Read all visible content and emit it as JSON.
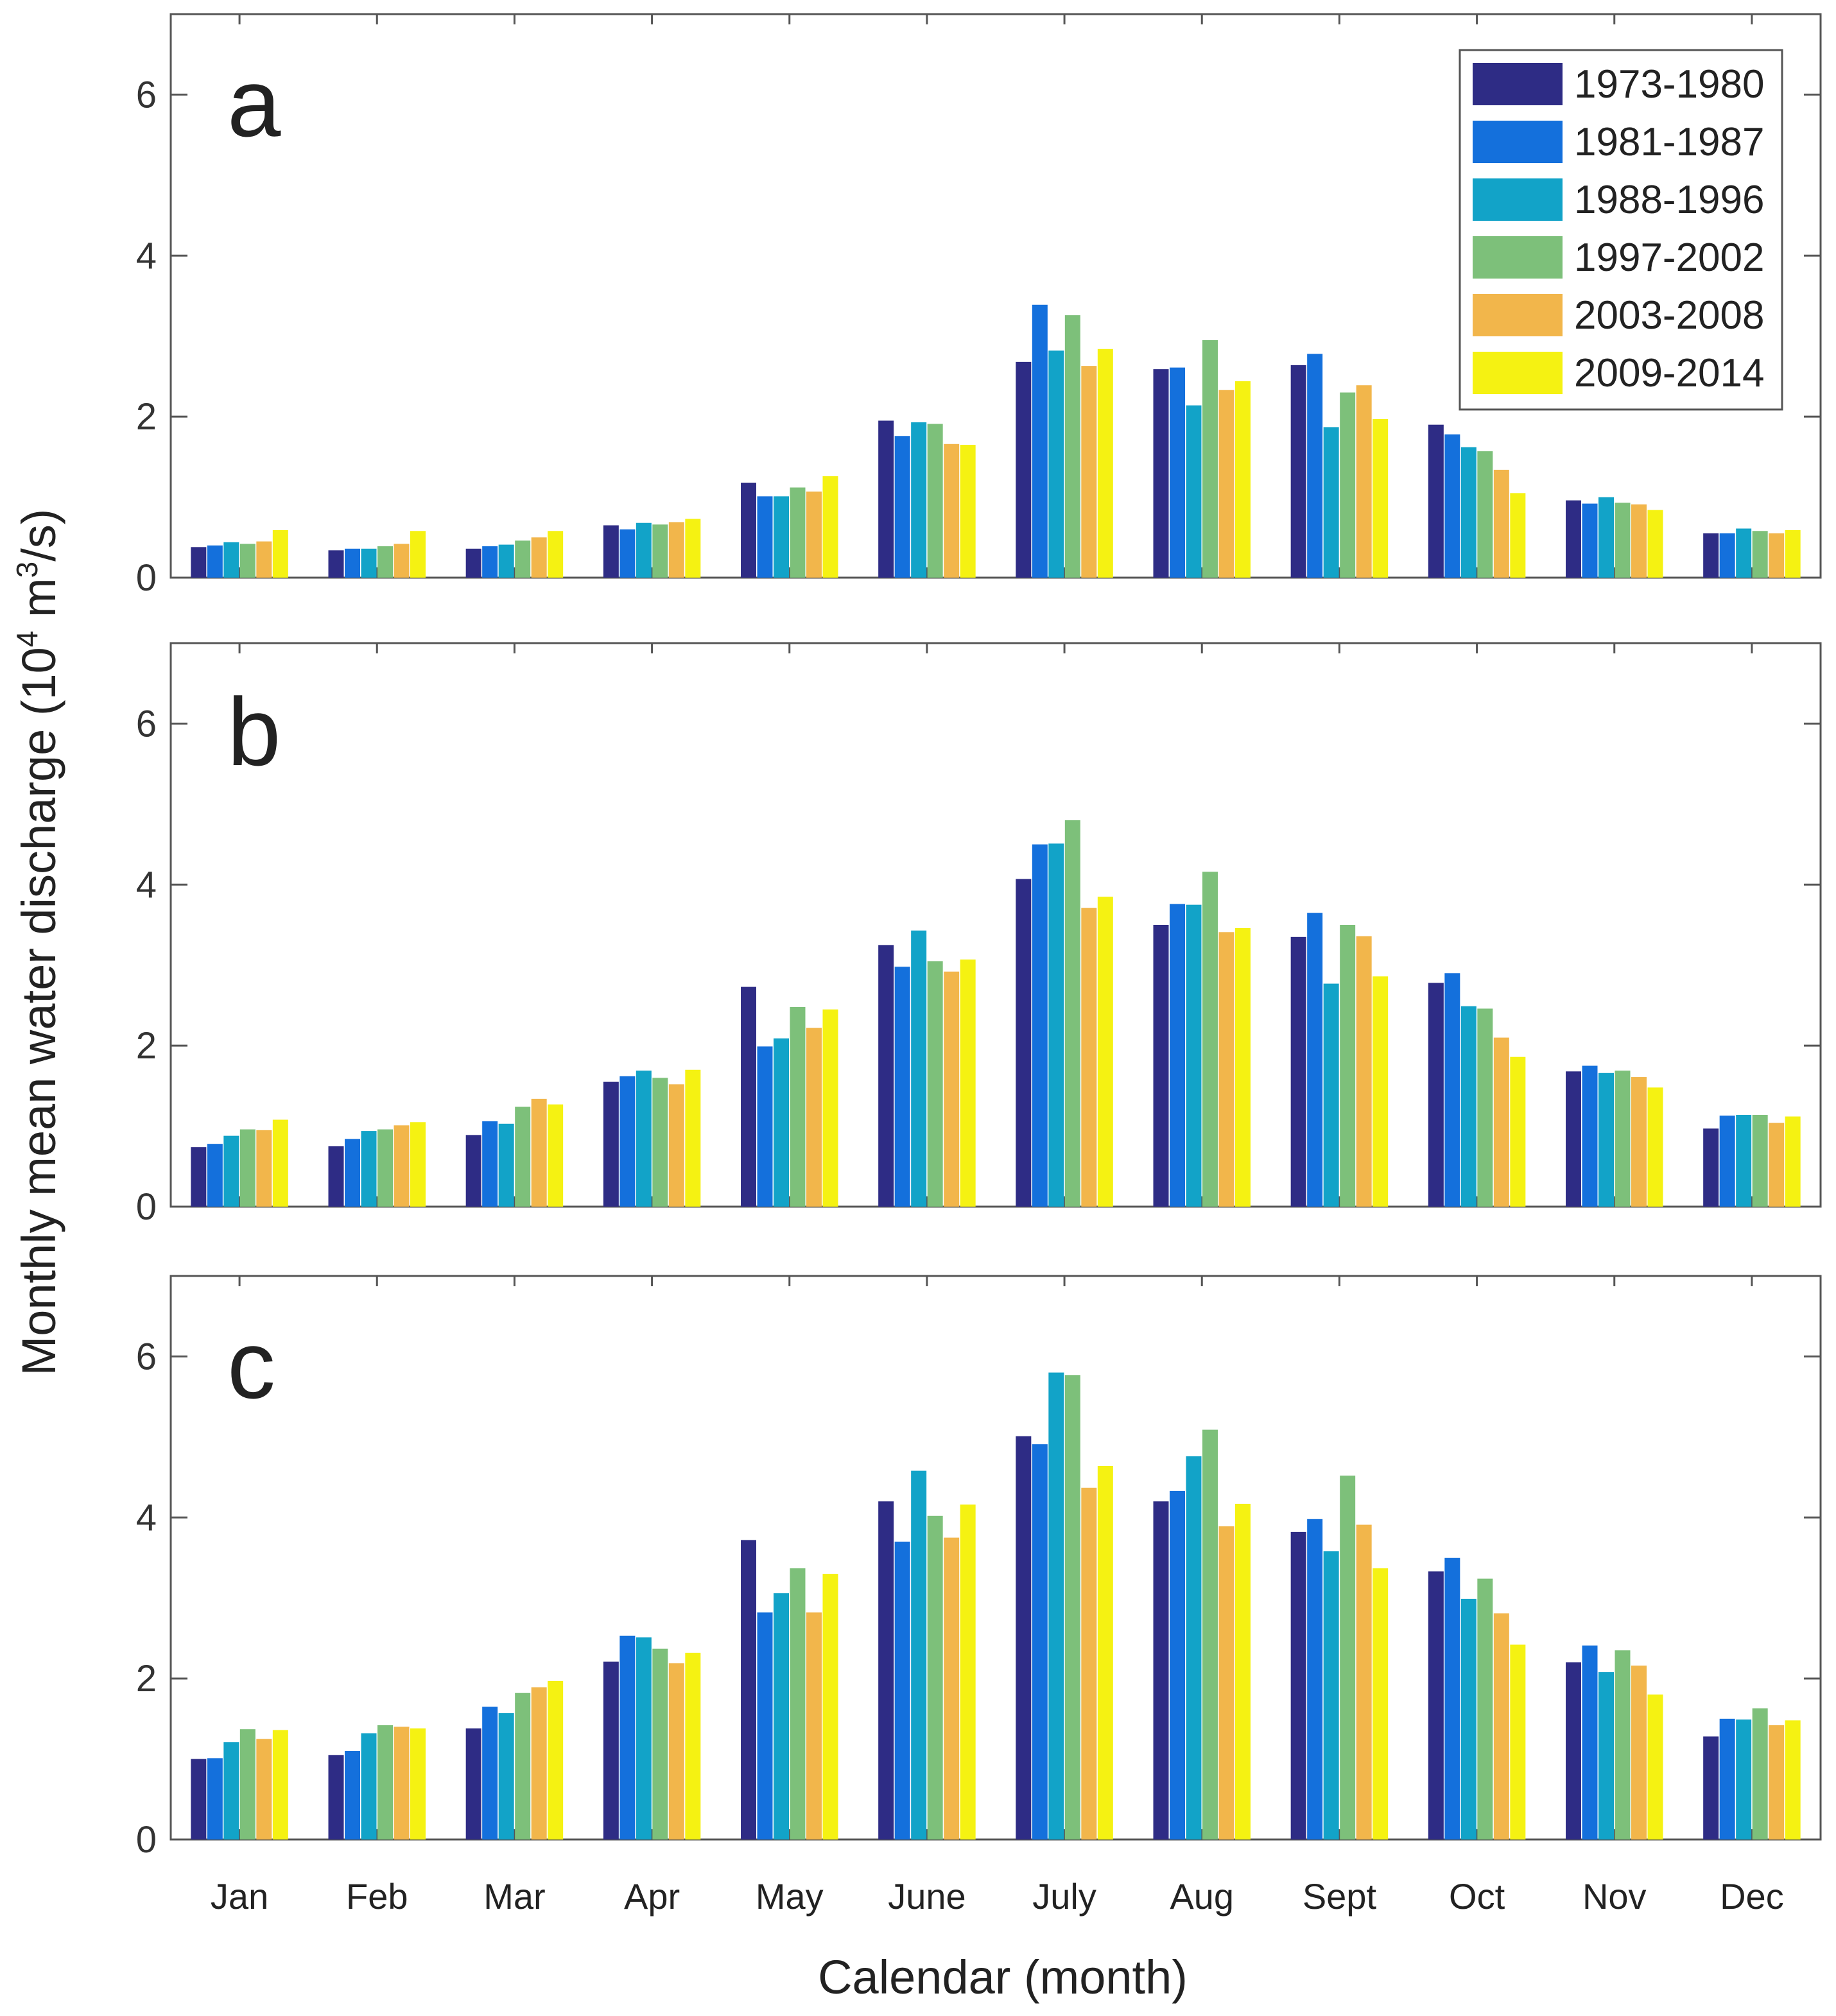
{
  "chart_data": {
    "type": "bar",
    "layout": "three vertically stacked panels sharing x categories and y label",
    "ylabel": {
      "prefix": "Monthly mean water discharge (10",
      "sup1": "4",
      "middle": " m",
      "sup2": "3",
      "suffix": "/s)"
    },
    "xlabel": "Calendar (month)",
    "categories": [
      "Jan",
      "Feb",
      "Mar",
      "Apr",
      "May",
      "June",
      "July",
      "Aug",
      "Sept",
      "Oct",
      "Nov",
      "Dec"
    ],
    "ylim": [
      0,
      7
    ],
    "yticks": [
      0,
      2,
      4,
      6
    ],
    "grid": false,
    "legend": {
      "placement": "top-right of panel a"
    },
    "series_style": [
      {
        "name": "1973-1980",
        "color": "#2e2c85"
      },
      {
        "name": "1981-1987",
        "color": "#1470dc"
      },
      {
        "name": "1988-1996",
        "color": "#12a3c8"
      },
      {
        "name": "1997-2002",
        "color": "#7dc07a"
      },
      {
        "name": "2003-2008",
        "color": "#f2b64b"
      },
      {
        "name": "2009-2014",
        "color": "#f5f212"
      }
    ],
    "panels": [
      {
        "label": "a",
        "series": [
          {
            "name": "1973-1980",
            "values": [
              0.38,
              0.34,
              0.36,
              0.65,
              1.18,
              1.95,
              2.68,
              2.59,
              2.64,
              1.9,
              0.96,
              0.55
            ]
          },
          {
            "name": "1981-1987",
            "values": [
              0.4,
              0.36,
              0.39,
              0.6,
              1.01,
              1.76,
              3.39,
              2.61,
              2.78,
              1.78,
              0.92,
              0.55
            ]
          },
          {
            "name": "1988-1996",
            "values": [
              0.44,
              0.36,
              0.41,
              0.68,
              1.01,
              1.93,
              2.82,
              2.14,
              1.87,
              1.62,
              1.0,
              0.61
            ]
          },
          {
            "name": "1997-2002",
            "values": [
              0.42,
              0.39,
              0.46,
              0.66,
              1.12,
              1.91,
              3.26,
              2.95,
              2.3,
              1.57,
              0.93,
              0.58
            ]
          },
          {
            "name": "2003-2008",
            "values": [
              0.45,
              0.42,
              0.5,
              0.69,
              1.07,
              1.66,
              2.63,
              2.33,
              2.39,
              1.34,
              0.91,
              0.55
            ]
          },
          {
            "name": "2009-2014",
            "values": [
              0.59,
              0.58,
              0.58,
              0.73,
              1.26,
              1.65,
              2.84,
              2.44,
              1.97,
              1.05,
              0.84,
              0.59
            ]
          }
        ]
      },
      {
        "label": "b",
        "series": [
          {
            "name": "1973-1980",
            "values": [
              0.74,
              0.75,
              0.89,
              1.55,
              2.73,
              3.25,
              4.07,
              3.5,
              3.35,
              2.78,
              1.68,
              0.97
            ]
          },
          {
            "name": "1981-1987",
            "values": [
              0.78,
              0.84,
              1.06,
              1.62,
              1.99,
              2.98,
              4.5,
              3.76,
              3.65,
              2.9,
              1.75,
              1.13
            ]
          },
          {
            "name": "1988-1996",
            "values": [
              0.88,
              0.94,
              1.03,
              1.69,
              2.09,
              3.43,
              4.51,
              3.75,
              2.77,
              2.49,
              1.66,
              1.14
            ]
          },
          {
            "name": "1997-2002",
            "values": [
              0.96,
              0.96,
              1.24,
              1.6,
              2.48,
              3.05,
              4.8,
              4.16,
              3.5,
              2.46,
              1.69,
              1.14
            ]
          },
          {
            "name": "2003-2008",
            "values": [
              0.95,
              1.01,
              1.34,
              1.52,
              2.22,
              2.92,
              3.71,
              3.41,
              3.36,
              2.1,
              1.61,
              1.04
            ]
          },
          {
            "name": "2009-2014",
            "values": [
              1.08,
              1.05,
              1.27,
              1.7,
              2.45,
              3.07,
              3.85,
              3.46,
              2.86,
              1.86,
              1.48,
              1.12
            ]
          }
        ]
      },
      {
        "label": "c",
        "series": [
          {
            "name": "1973-1980",
            "values": [
              1.0,
              1.05,
              1.38,
              2.21,
              3.72,
              4.2,
              5.01,
              4.2,
              3.82,
              3.33,
              2.2,
              1.28
            ]
          },
          {
            "name": "1981-1987",
            "values": [
              1.01,
              1.1,
              1.65,
              2.53,
              2.82,
              3.7,
              4.91,
              4.33,
              3.98,
              3.5,
              2.41,
              1.5
            ]
          },
          {
            "name": "1988-1996",
            "values": [
              1.21,
              1.32,
              1.57,
              2.51,
              3.06,
              4.58,
              5.8,
              4.76,
              3.58,
              2.99,
              2.08,
              1.49
            ]
          },
          {
            "name": "1997-2002",
            "values": [
              1.37,
              1.42,
              1.82,
              2.37,
              3.37,
              4.02,
              5.77,
              5.09,
              4.52,
              3.24,
              2.35,
              1.63
            ]
          },
          {
            "name": "2003-2008",
            "values": [
              1.25,
              1.4,
              1.89,
              2.19,
              2.82,
              3.75,
              4.37,
              3.89,
              3.91,
              2.81,
              2.16,
              1.42
            ]
          },
          {
            "name": "2009-2014",
            "values": [
              1.36,
              1.38,
              1.97,
              2.32,
              3.3,
              4.16,
              4.64,
              4.17,
              3.37,
              2.42,
              1.8,
              1.48
            ]
          }
        ]
      }
    ]
  }
}
